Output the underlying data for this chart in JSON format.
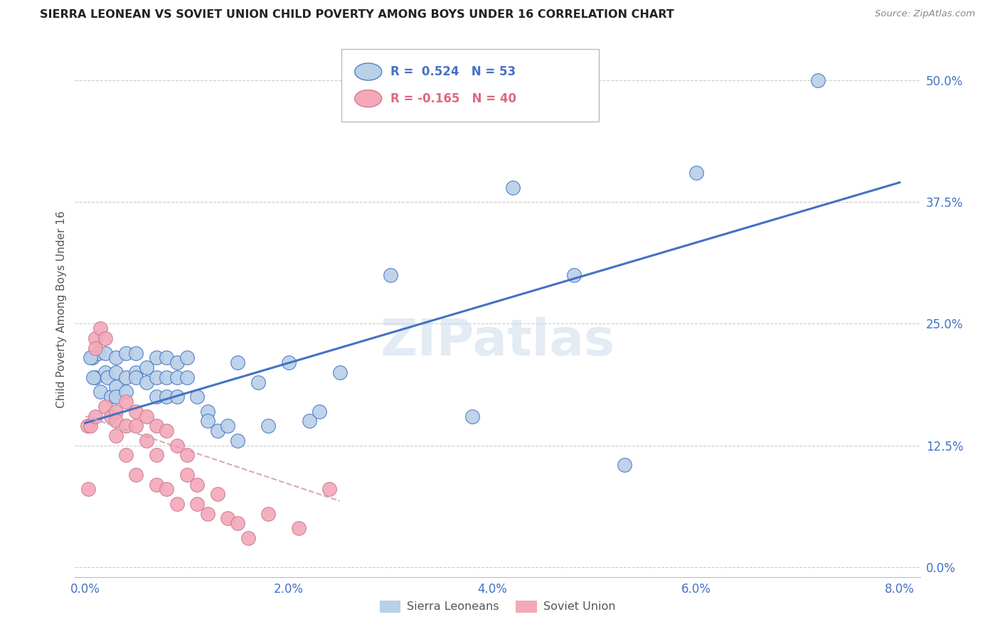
{
  "title": "SIERRA LEONEAN VS SOVIET UNION CHILD POVERTY AMONG BOYS UNDER 16 CORRELATION CHART",
  "source": "Source: ZipAtlas.com",
  "ylabel": "Child Poverty Among Boys Under 16",
  "xlabel_ticks": [
    0.0,
    0.02,
    0.04,
    0.06,
    0.08
  ],
  "xlabel_labels": [
    "0.0%",
    "2.0%",
    "4.0%",
    "6.0%",
    "8.0%"
  ],
  "ylabel_ticks": [
    0.0,
    0.125,
    0.25,
    0.375,
    0.5
  ],
  "ylabel_labels": [
    "0.0%",
    "12.5%",
    "25.0%",
    "37.5%",
    "50.0%"
  ],
  "xlim": [
    -0.001,
    0.082
  ],
  "ylim": [
    -0.01,
    0.54
  ],
  "series1_color": "#b8d0e8",
  "series2_color": "#f4a8b8",
  "trendline1_color": "#4472c4",
  "trendline2_color": "#d4a0b0",
  "watermark": "ZIPatlas",
  "sierra_x": [
    0.0007,
    0.001,
    0.0013,
    0.0015,
    0.002,
    0.002,
    0.0022,
    0.0025,
    0.003,
    0.003,
    0.003,
    0.003,
    0.004,
    0.004,
    0.004,
    0.005,
    0.005,
    0.005,
    0.006,
    0.006,
    0.007,
    0.007,
    0.007,
    0.008,
    0.008,
    0.008,
    0.009,
    0.009,
    0.009,
    0.01,
    0.01,
    0.011,
    0.012,
    0.012,
    0.013,
    0.014,
    0.015,
    0.015,
    0.017,
    0.018,
    0.02,
    0.022,
    0.023,
    0.025,
    0.03,
    0.038,
    0.042,
    0.048,
    0.053,
    0.06,
    0.072,
    0.0005,
    0.0008
  ],
  "sierra_y": [
    0.215,
    0.195,
    0.22,
    0.18,
    0.22,
    0.2,
    0.195,
    0.175,
    0.215,
    0.2,
    0.185,
    0.175,
    0.22,
    0.195,
    0.18,
    0.22,
    0.2,
    0.195,
    0.205,
    0.19,
    0.215,
    0.195,
    0.175,
    0.215,
    0.195,
    0.175,
    0.21,
    0.195,
    0.175,
    0.215,
    0.195,
    0.175,
    0.16,
    0.15,
    0.14,
    0.145,
    0.21,
    0.13,
    0.19,
    0.145,
    0.21,
    0.15,
    0.16,
    0.2,
    0.3,
    0.155,
    0.39,
    0.3,
    0.105,
    0.405,
    0.5,
    0.215,
    0.195
  ],
  "soviet_x": [
    0.0002,
    0.0005,
    0.001,
    0.001,
    0.001,
    0.0015,
    0.002,
    0.002,
    0.0025,
    0.003,
    0.003,
    0.003,
    0.004,
    0.004,
    0.004,
    0.005,
    0.005,
    0.005,
    0.006,
    0.006,
    0.007,
    0.007,
    0.007,
    0.008,
    0.008,
    0.009,
    0.009,
    0.01,
    0.01,
    0.011,
    0.011,
    0.012,
    0.013,
    0.014,
    0.015,
    0.016,
    0.018,
    0.021,
    0.024,
    0.0003
  ],
  "soviet_y": [
    0.145,
    0.145,
    0.235,
    0.225,
    0.155,
    0.245,
    0.235,
    0.165,
    0.155,
    0.16,
    0.15,
    0.135,
    0.17,
    0.145,
    0.115,
    0.16,
    0.145,
    0.095,
    0.155,
    0.13,
    0.145,
    0.115,
    0.085,
    0.14,
    0.08,
    0.125,
    0.065,
    0.115,
    0.095,
    0.085,
    0.065,
    0.055,
    0.075,
    0.05,
    0.045,
    0.03,
    0.055,
    0.04,
    0.08,
    0.08
  ],
  "sierra_legend_label": "Sierra Leoneans",
  "soviet_legend_label": "Soviet Union",
  "trend1_x0": 0.0,
  "trend1_x1": 0.08,
  "trend2_x0": 0.0,
  "trend2_x1": 0.025
}
